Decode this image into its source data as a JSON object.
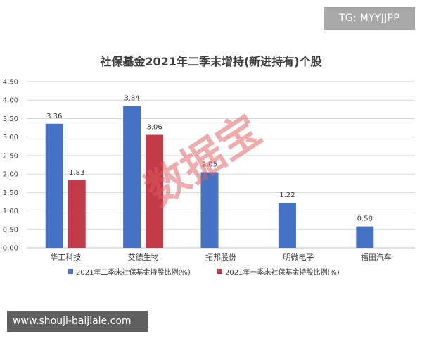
{
  "badge": {
    "text": "TG: MYYJJPP"
  },
  "banner": {
    "text": "www.shouji-baijiale.com"
  },
  "watermark": {
    "text": "数据宝",
    "color": "#e05a5a"
  },
  "chart_data": {
    "type": "bar",
    "title": "社保基金2021年二季末增持(新进持有)个股",
    "categories": [
      "华工科技",
      "艾德生物",
      "拓邦股份",
      "明微电子",
      "福田汽车"
    ],
    "series": [
      {
        "name": "2021年二季末社保基金持股比例(%)",
        "color": "#4472c4",
        "values": [
          3.36,
          3.84,
          2.05,
          1.22,
          0.58
        ]
      },
      {
        "name": "2021年一季末社保基金持股比例(%)",
        "color": "#c33b48",
        "values": [
          1.83,
          3.06,
          null,
          null,
          null
        ]
      }
    ],
    "ylim": [
      0,
      4.5
    ],
    "yticks": [
      "0.00",
      "0.50",
      "1.00",
      "1.50",
      "2.00",
      "2.50",
      "3.00",
      "3.50",
      "4.00",
      "4.50"
    ],
    "data_labels": true,
    "grid": true,
    "legend_position": "bottom"
  }
}
